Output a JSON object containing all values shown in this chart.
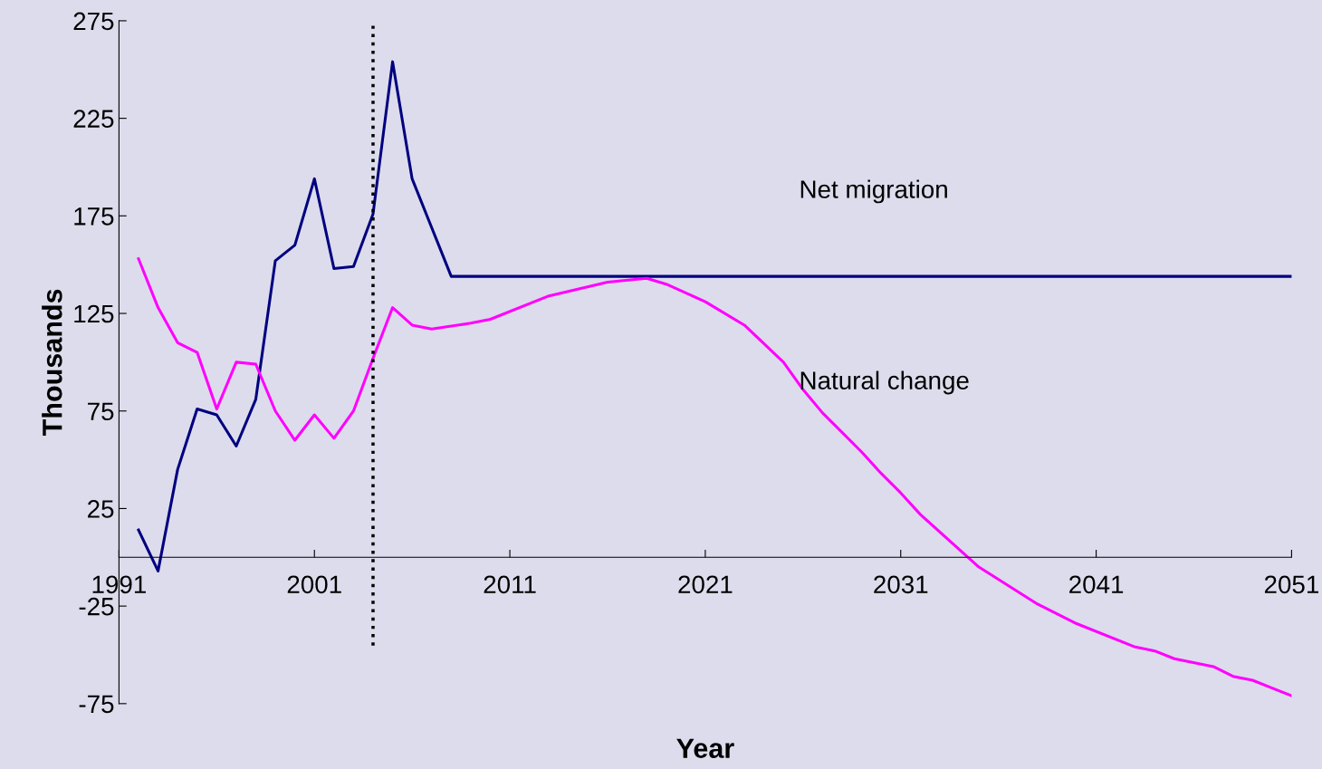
{
  "chart_data": {
    "type": "line",
    "xlabel": "Year",
    "ylabel": "Thousands",
    "xlim": [
      1991,
      2051
    ],
    "xticks": [
      1991,
      2001,
      2011,
      2021,
      2031,
      2041,
      2051
    ],
    "ylim": [
      -75,
      275
    ],
    "yticks": [
      -75,
      -25,
      25,
      75,
      125,
      175,
      225,
      275
    ],
    "grid": false,
    "legend": false,
    "marker": "none",
    "line_style": "solid",
    "series": [
      {
        "name": "Net migration",
        "color": "#000080",
        "x": [
          1992,
          1993,
          1994,
          1995,
          1996,
          1997,
          1998,
          1999,
          2000,
          2001,
          2002,
          2003,
          2004,
          2005,
          2006,
          2007,
          2008,
          2051
        ],
        "values": [
          14,
          -7,
          45,
          76,
          73,
          57,
          81,
          152,
          160,
          194,
          148,
          149,
          176,
          254,
          194,
          169,
          144,
          144
        ]
      },
      {
        "name": "Natural change",
        "color": "#ff00ff",
        "x": [
          1992,
          1993,
          1994,
          1995,
          1996,
          1997,
          1998,
          1999,
          2000,
          2001,
          2002,
          2003,
          2004,
          2005,
          2006,
          2007,
          2009,
          2010,
          2013,
          2016,
          2018,
          2019,
          2021,
          2023,
          2025,
          2026,
          2027,
          2028,
          2029,
          2030,
          2031,
          2032,
          2035,
          2038,
          2040,
          2043,
          2044,
          2045,
          2047,
          2048,
          2049,
          2050,
          2051
        ],
        "values": [
          153,
          128,
          110,
          105,
          76,
          100,
          99,
          75,
          60,
          73,
          61,
          75,
          102,
          128,
          119,
          117,
          120,
          122,
          134,
          141,
          143,
          140,
          131,
          119,
          100,
          86,
          74,
          64,
          54,
          43,
          33,
          22,
          -5,
          -24,
          -34,
          -46,
          -48,
          -52,
          -56,
          -61,
          -63,
          -67,
          -71
        ]
      }
    ],
    "ref_lines": [
      {
        "axis": "x",
        "value": 2004,
        "color": "#000000",
        "line_style": "dotted"
      }
    ]
  }
}
